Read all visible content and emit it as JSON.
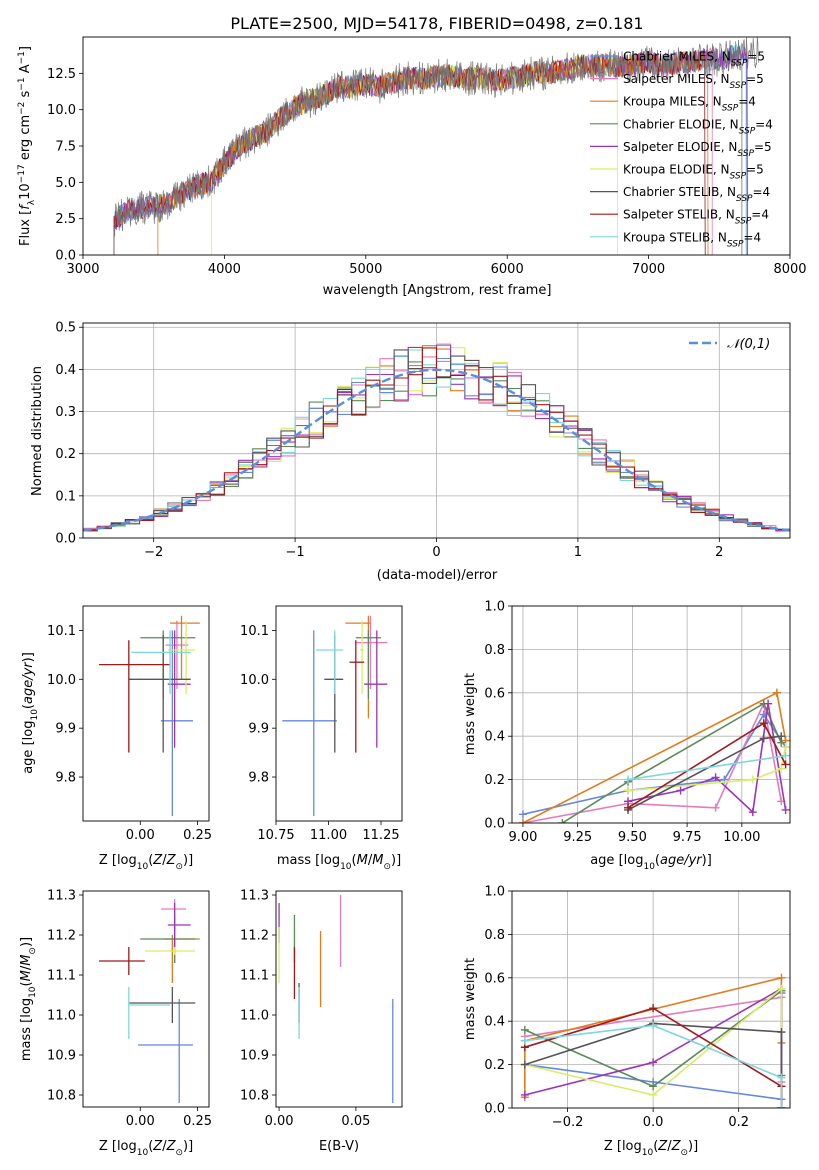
{
  "figure": {
    "title": "PLATE=2500, MJD=54178, FIBERID=0498, z=0.181"
  },
  "series": [
    {
      "name": "Chabrier MILES",
      "nssp": "5",
      "color": "#6688dd"
    },
    {
      "name": "Salpeter MILES",
      "nssp": "5",
      "color": "#e67aba"
    },
    {
      "name": "Kroupa MILES",
      "nssp": "4",
      "color": "#e07b1e"
    },
    {
      "name": "Chabrier ELODIE",
      "nssp": "4",
      "color": "#5a8a5a"
    },
    {
      "name": "Salpeter ELODIE",
      "nssp": "5",
      "color": "#9b35b5"
    },
    {
      "name": "Kroupa ELODIE",
      "nssp": "5",
      "color": "#d9ec6a"
    },
    {
      "name": "Chabrier STELIB",
      "nssp": "4",
      "color": "#555555"
    },
    {
      "name": "Salpeter STELIB",
      "nssp": "4",
      "color": "#a01a1a"
    },
    {
      "name": "Kroupa STELIB",
      "nssp": "4",
      "color": "#7fd6dd"
    }
  ],
  "chart_data": [
    {
      "id": "spectrum",
      "type": "line",
      "xlabel": "wavelength [Angstrom, rest frame]",
      "ylabel": "Flux [f_λ 10^-17 erg cm^-2 s^-1 A^-1]",
      "xlim": [
        3000,
        8000
      ],
      "ylim": [
        0,
        15
      ],
      "xticks": [
        3000,
        4000,
        5000,
        6000,
        7000,
        8000
      ],
      "yticks": [
        0.0,
        2.5,
        5.0,
        7.5,
        10.0,
        12.5
      ],
      "legend": "top-right",
      "data_x": [
        3220,
        3300,
        3400,
        3500,
        3600,
        3700,
        3800,
        3900,
        4000,
        4100,
        4200,
        4300,
        4400,
        4500,
        4600,
        4700,
        4800,
        4900,
        5000,
        5100,
        5200,
        5300,
        5400,
        5500,
        5600,
        5700,
        5800,
        5900,
        6000,
        6100,
        6200,
        6300,
        6400,
        6500,
        6600,
        6700,
        6800,
        6900,
        7000,
        7100,
        7200,
        7300,
        7400,
        7500,
        7600,
        7700,
        7800
      ],
      "data_y": [
        2.3,
        3.0,
        3.3,
        3.3,
        3.6,
        4.2,
        4.8,
        5.0,
        6.3,
        7.5,
        8.0,
        8.5,
        9.5,
        10.2,
        10.6,
        11.0,
        11.5,
        11.6,
        11.8,
        11.6,
        11.9,
        12.2,
        12.1,
        12.3,
        12.4,
        12.1,
        12.2,
        12.0,
        12.1,
        12.3,
        12.6,
        12.5,
        12.7,
        13.0,
        13.0,
        13.1,
        12.9,
        13.1,
        13.3,
        13.0,
        13.2,
        13.3,
        13.5,
        13.4,
        13.7,
        13.9,
        14.1
      ],
      "model_start": [
        3220,
        3220,
        3530,
        3220,
        3220,
        3910,
        3220,
        3220,
        3220
      ],
      "model_end": [
        7690,
        7450,
        7420,
        7660,
        7700,
        6780,
        7780,
        7400,
        7700
      ]
    },
    {
      "id": "residuals",
      "type": "area",
      "xlabel": "(data-model)/error",
      "ylabel": "Normed distribution",
      "xlim": [
        -2.5,
        2.5
      ],
      "ylim": [
        0,
        0.51
      ],
      "xticks": [
        -2,
        -1,
        0,
        1,
        2
      ],
      "yticks": [
        0.0,
        0.1,
        0.2,
        0.3,
        0.4,
        0.5
      ],
      "grid": true,
      "legend": "top-right",
      "reference_name": "𝒩(0,1)",
      "reference_color": "#5b8fd9",
      "bin_width": 0.1
    },
    {
      "id": "age_vs_Z",
      "type": "scatter",
      "xlabel": "Z [log10(Z/Z⊙)]",
      "ylabel": "age  [log10(age/yr)]",
      "xlim": [
        -0.25,
        0.3
      ],
      "ylim": [
        9.71,
        10.15
      ],
      "xticks": [
        0.0,
        0.25
      ],
      "xticklabels": [
        "0.00",
        "0.25"
      ],
      "yticks": [
        9.8,
        9.9,
        10.0,
        10.1
      ],
      "points": [
        {
          "x": 0.14,
          "xlo": 0.09,
          "xhi": 0.23,
          "y": 9.915,
          "ylo": 9.72,
          "yhi": 10.1
        },
        {
          "x": 0.16,
          "xlo": 0.11,
          "xhi": 0.21,
          "y": 10.07,
          "ylo": 9.98,
          "yhi": 10.12
        },
        {
          "x": 0.18,
          "xlo": 0.13,
          "xhi": 0.26,
          "y": 10.115,
          "ylo": 10.0,
          "yhi": 10.13
        },
        {
          "x": 0.1,
          "xlo": 0.0,
          "xhi": 0.24,
          "y": 10.085,
          "ylo": 9.96,
          "yhi": 10.1
        },
        {
          "x": 0.15,
          "xlo": 0.12,
          "xhi": 0.22,
          "y": 9.99,
          "ylo": 9.86,
          "yhi": 10.1
        },
        {
          "x": 0.2,
          "xlo": 0.12,
          "xhi": 0.24,
          "y": 10.06,
          "ylo": 9.97,
          "yhi": 10.12
        },
        {
          "x": 0.1,
          "xlo": -0.05,
          "xhi": 0.22,
          "y": 10.0,
          "ylo": 9.85,
          "yhi": 10.09
        },
        {
          "x": -0.05,
          "xlo": -0.18,
          "xhi": 0.13,
          "y": 10.03,
          "ylo": 9.85,
          "yhi": 10.08
        },
        {
          "x": 0.13,
          "xlo": -0.04,
          "xhi": 0.22,
          "y": 10.055,
          "ylo": 9.97,
          "yhi": 10.1
        }
      ]
    },
    {
      "id": "age_vs_mass",
      "type": "scatter",
      "xlabel": "mass [log10(M/M⊙)]",
      "ylabel": "",
      "xlim": [
        10.75,
        11.35
      ],
      "ylim": [
        9.71,
        10.15
      ],
      "xticks": [
        10.75,
        11.0,
        11.25
      ],
      "xticklabels": [
        "10.75",
        "11.00",
        "11.25"
      ],
      "yticks": [
        9.8,
        9.9,
        10.0,
        10.1
      ],
      "points": [
        {
          "x": 10.93,
          "xlo": 10.78,
          "xhi": 11.04,
          "y": 9.915,
          "ylo": 9.72,
          "yhi": 10.1
        },
        {
          "x": 11.2,
          "xlo": 11.13,
          "xhi": 11.28,
          "y": 10.075,
          "ylo": 9.98,
          "yhi": 10.13
        },
        {
          "x": 11.19,
          "xlo": 11.08,
          "xhi": 11.2,
          "y": 10.115,
          "ylo": 9.92,
          "yhi": 10.13
        },
        {
          "x": 11.19,
          "xlo": 11.13,
          "xhi": 11.25,
          "y": 10.085,
          "ylo": 9.96,
          "yhi": 10.1
        },
        {
          "x": 11.23,
          "xlo": 11.17,
          "xhi": 11.28,
          "y": 9.99,
          "ylo": 9.86,
          "yhi": 10.1
        },
        {
          "x": 11.16,
          "xlo": 11.15,
          "xhi": 11.17,
          "y": 10.06,
          "ylo": 9.97,
          "yhi": 10.12
        },
        {
          "x": 11.03,
          "xlo": 10.98,
          "xhi": 11.07,
          "y": 10.0,
          "ylo": 9.85,
          "yhi": 10.09
        },
        {
          "x": 11.13,
          "xlo": 11.1,
          "xhi": 11.17,
          "y": 10.035,
          "ylo": 9.85,
          "yhi": 10.08
        },
        {
          "x": 11.03,
          "xlo": 10.94,
          "xhi": 11.07,
          "y": 10.06,
          "ylo": 9.97,
          "yhi": 10.1
        }
      ]
    },
    {
      "id": "massweight_vs_age",
      "type": "line",
      "xlabel": "age  [log10(age/yr)]",
      "ylabel": "mass weight",
      "xlim": [
        8.95,
        10.22
      ],
      "ylim": [
        0,
        1
      ],
      "xticks": [
        9.0,
        9.25,
        9.5,
        9.75,
        10.0
      ],
      "xticklabels": [
        "9.00",
        "9.25",
        "9.50",
        "9.75",
        "10.00"
      ],
      "yticks": [
        0.0,
        0.2,
        0.4,
        0.6,
        0.8,
        1.0
      ],
      "grid": true,
      "lines": [
        {
          "x": [
            9.0,
            9.48,
            9.92,
            10.1,
            10.2
          ],
          "y": [
            0.04,
            0.15,
            0.2,
            0.5,
            0.35
          ]
        },
        {
          "x": [
            9.0,
            9.48,
            9.88,
            10.1,
            10.18
          ],
          "y": [
            0.0,
            0.09,
            0.07,
            0.55,
            0.1
          ]
        },
        {
          "x": [
            9.0,
            10.16,
            10.2,
            10.16
          ],
          "y": [
            0.0,
            0.6,
            0.38,
            0.6
          ]
        },
        {
          "x": [
            9.18,
            9.48,
            10.1,
            10.18
          ],
          "y": [
            0.0,
            0.19,
            0.55,
            0.37
          ]
        },
        {
          "x": [
            9.48,
            9.72,
            9.88,
            10.05,
            10.12,
            10.2
          ],
          "y": [
            0.1,
            0.15,
            0.21,
            0.05,
            0.55,
            0.06
          ]
        },
        {
          "x": [
            9.48,
            10.05,
            10.18,
            10.2
          ],
          "y": [
            0.15,
            0.2,
            0.25,
            0.35
          ]
        },
        {
          "x": [
            9.48,
            10.1,
            10.18
          ],
          "y": [
            0.06,
            0.39,
            0.4
          ]
        },
        {
          "x": [
            9.48,
            10.1,
            10.2
          ],
          "y": [
            0.07,
            0.46,
            0.27
          ]
        },
        {
          "x": [
            9.48,
            10.2
          ],
          "y": [
            0.2,
            0.31
          ]
        }
      ]
    },
    {
      "id": "mass_vs_Z",
      "type": "scatter",
      "xlabel": "Z [log10(Z/Z⊙)]",
      "ylabel": "mass [log10(M/M⊙)]",
      "xlim": [
        -0.25,
        0.3
      ],
      "ylim": [
        10.77,
        11.31
      ],
      "xticks": [
        0.0,
        0.25
      ],
      "xticklabels": [
        "0.00",
        "0.25"
      ],
      "yticks": [
        10.8,
        10.9,
        11.0,
        11.1,
        11.2,
        11.3
      ],
      "points": [
        {
          "x": 0.17,
          "xlo": -0.01,
          "xhi": 0.23,
          "y": 10.925,
          "ylo": 10.78,
          "yhi": 11.04
        },
        {
          "x": 0.15,
          "xlo": 0.09,
          "xhi": 0.2,
          "y": 11.265,
          "ylo": 11.13,
          "yhi": 11.29
        },
        {
          "x": 0.14,
          "xlo": 0.1,
          "xhi": 0.26,
          "y": 11.19,
          "ylo": 11.08,
          "yhi": 11.2
        },
        {
          "x": 0.15,
          "xlo": 0.0,
          "xhi": 0.24,
          "y": 11.19,
          "ylo": 11.13,
          "yhi": 11.25
        },
        {
          "x": 0.15,
          "xlo": 0.12,
          "xhi": 0.22,
          "y": 11.225,
          "ylo": 11.17,
          "yhi": 11.28
        },
        {
          "x": 0.15,
          "xlo": 0.02,
          "xhi": 0.24,
          "y": 11.16,
          "ylo": 11.15,
          "yhi": 11.17
        },
        {
          "x": 0.14,
          "xlo": -0.05,
          "xhi": 0.24,
          "y": 11.03,
          "ylo": 10.98,
          "yhi": 11.07
        },
        {
          "x": -0.05,
          "xlo": -0.18,
          "xhi": 0.02,
          "y": 11.135,
          "ylo": 11.1,
          "yhi": 11.17
        },
        {
          "x": -0.05,
          "xlo": -0.05,
          "xhi": 0.13,
          "y": 11.025,
          "ylo": 10.94,
          "yhi": 11.07
        }
      ]
    },
    {
      "id": "mass_vs_ebv",
      "type": "scatter",
      "xlabel": "E(B-V)",
      "ylabel": "",
      "xlim": [
        -0.002,
        0.08
      ],
      "ylim": [
        10.77,
        11.31
      ],
      "xticks": [
        0.0,
        0.05
      ],
      "xticklabels": [
        "0.00",
        "0.05"
      ],
      "yticks": [
        10.8,
        10.9,
        11.0,
        11.1,
        11.2,
        11.3
      ],
      "points": [
        {
          "x": 0.074,
          "ylo": 10.78,
          "yhi": 11.04
        },
        {
          "x": 0.04,
          "ylo": 11.12,
          "yhi": 11.3
        },
        {
          "x": 0.027,
          "ylo": 11.02,
          "yhi": 11.21
        },
        {
          "x": 0.01,
          "ylo": 11.13,
          "yhi": 11.25
        },
        {
          "x": 0.0,
          "ylo": 11.18,
          "yhi": 11.28
        },
        {
          "x": 0.0,
          "ylo": 11.08,
          "yhi": 11.22
        },
        {
          "x": 0.013,
          "ylo": 10.98,
          "yhi": 11.08
        },
        {
          "x": 0.01,
          "ylo": 11.04,
          "yhi": 11.17
        },
        {
          "x": 0.013,
          "ylo": 10.94,
          "yhi": 11.07
        }
      ]
    },
    {
      "id": "massweight_vs_Z",
      "type": "line",
      "xlabel": "Z [log10(Z/Z⊙)]",
      "ylabel": "mass weight",
      "xlim": [
        -0.33,
        0.32
      ],
      "ylim": [
        0,
        1
      ],
      "xticks": [
        -0.2,
        0.0,
        0.2
      ],
      "xticklabels": [
        "−0.2",
        "0.0",
        "0.2"
      ],
      "yticks": [
        0.0,
        0.2,
        0.4,
        0.6,
        0.8,
        1.0
      ],
      "grid": true,
      "lines": [
        {
          "x": [
            -0.3,
            0.0,
            0.3,
            0.3
          ],
          "y": [
            0.2,
            0.12,
            0.04,
            0.53
          ]
        },
        {
          "x": [
            -0.3,
            0.3,
            0.3
          ],
          "y": [
            0.33,
            0.51,
            0.12
          ]
        },
        {
          "x": [
            -0.3,
            -0.3,
            0.3,
            0.3
          ],
          "y": [
            0.05,
            0.31,
            0.6,
            0.3
          ]
        },
        {
          "x": [
            -0.3,
            0.0,
            0.3,
            0.3
          ],
          "y": [
            0.36,
            0.1,
            0.54,
            0.15
          ]
        },
        {
          "x": [
            -0.3,
            0.0,
            0.3,
            0.3
          ],
          "y": [
            0.06,
            0.21,
            0.55,
            0.0
          ]
        },
        {
          "x": [
            -0.3,
            0.0,
            0.3,
            0.3
          ],
          "y": [
            0.2,
            0.06,
            0.55,
            0.35
          ]
        },
        {
          "x": [
            -0.3,
            0.0,
            0.3,
            0.3
          ],
          "y": [
            0.2,
            0.39,
            0.35,
            0.0
          ]
        },
        {
          "x": [
            -0.3,
            0.0,
            0.3,
            0.3
          ],
          "y": [
            0.28,
            0.46,
            0.1,
            0.0
          ]
        },
        {
          "x": [
            -0.3,
            0.0,
            0.3,
            0.3
          ],
          "y": [
            0.31,
            0.38,
            0.14,
            0.0
          ]
        }
      ]
    }
  ]
}
